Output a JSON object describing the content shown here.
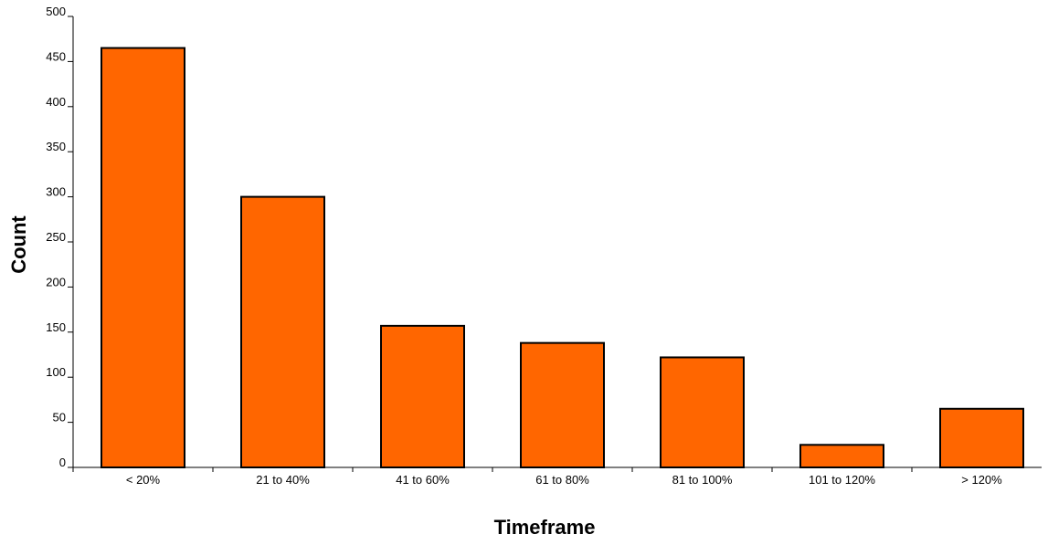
{
  "chart_data": {
    "type": "bar",
    "title": "",
    "xlabel": "Timeframe",
    "ylabel": "Count",
    "categories": [
      "< 20%",
      "21 to 40%",
      "41 to 60%",
      "61 to 80%",
      "81 to 100%",
      "101 to 120%",
      "> 120%"
    ],
    "values": [
      465,
      300,
      157,
      138,
      122,
      25,
      65
    ],
    "ylim": [
      0,
      500
    ],
    "yticks": [
      0,
      50,
      100,
      150,
      200,
      250,
      300,
      350,
      400,
      450,
      500
    ],
    "grid": false,
    "legend": "none",
    "colors": {
      "bar_fill": "#ff6600",
      "bar_stroke": "#000000",
      "axis": "#000000"
    }
  }
}
